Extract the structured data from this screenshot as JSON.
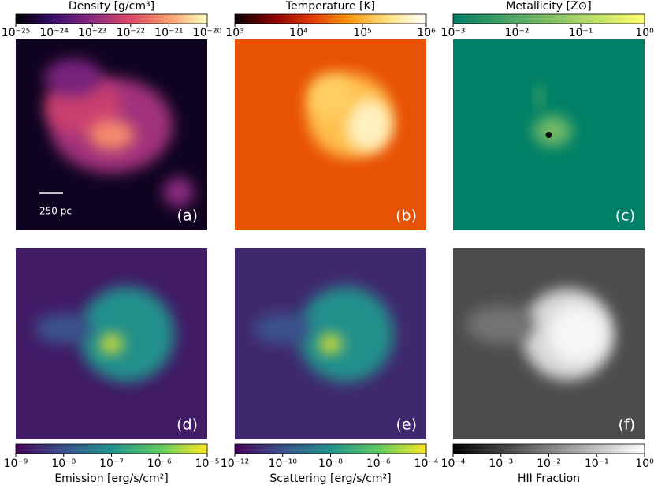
{
  "chart_data": [
    {
      "type": "image",
      "colorbar_label": "Density [g/cm³]",
      "log": true,
      "clim": [
        1e-25,
        1e-20
      ],
      "cticks": [
        {
          "value": 1e-25,
          "label": "10⁻²⁵"
        },
        {
          "value": 1e-24,
          "label": "10⁻²⁴"
        },
        {
          "value": 1e-23,
          "label": "10⁻²³"
        },
        {
          "value": 1e-22,
          "label": "10⁻²²"
        },
        {
          "value": 1e-21,
          "label": "10⁻²¹"
        },
        {
          "value": 1e-20,
          "label": "10⁻²⁰"
        }
      ],
      "colormap": [
        "#000004",
        "#3b0f70",
        "#8c2981",
        "#de4968",
        "#fe9f6d",
        "#fcfdbf"
      ],
      "panel_label": "(a)",
      "annotation": "250 pc",
      "colorbar_position": "top"
    },
    {
      "type": "image",
      "colorbar_label": "Temperature [K]",
      "log": true,
      "clim": [
        1000.0,
        1000000.0
      ],
      "cticks": [
        {
          "value": 1000,
          "label": "10³"
        },
        {
          "value": 10000,
          "label": "10⁴"
        },
        {
          "value": 100000,
          "label": "10⁵"
        },
        {
          "value": 1000000,
          "label": "10⁶"
        }
      ],
      "colormap": [
        "#0b0000",
        "#8b0000",
        "#e03a00",
        "#ff9a10",
        "#ffe080",
        "#ffffff"
      ],
      "panel_label": "(b)",
      "colorbar_position": "top"
    },
    {
      "type": "image",
      "colorbar_label": "Metallicity [Z⊙]",
      "log": true,
      "clim": [
        0.001,
        1
      ],
      "cticks": [
        {
          "value": 0.001,
          "label": "10⁻³"
        },
        {
          "value": 0.01,
          "label": "10⁻²"
        },
        {
          "value": 0.1,
          "label": "10⁻¹"
        },
        {
          "value": 1,
          "label": "10⁰"
        }
      ],
      "colormap": [
        "#008066",
        "#40a066",
        "#80c066",
        "#c0e066",
        "#ffff66"
      ],
      "panel_label": "(c)",
      "colorbar_position": "top"
    },
    {
      "type": "image",
      "colorbar_label": "Emission [erg/s/cm²]",
      "log": true,
      "clim": [
        1e-09,
        1e-05
      ],
      "cticks": [
        {
          "value": 1e-09,
          "label": "10⁻⁹"
        },
        {
          "value": 1e-08,
          "label": "10⁻⁸"
        },
        {
          "value": 1e-07,
          "label": "10⁻⁷"
        },
        {
          "value": 1e-06,
          "label": "10⁻⁶"
        },
        {
          "value": 1e-05,
          "label": "10⁻⁵"
        }
      ],
      "colormap": [
        "#440154",
        "#3b528b",
        "#21918c",
        "#5ec962",
        "#fde725"
      ],
      "panel_label": "(d)",
      "colorbar_position": "bottom"
    },
    {
      "type": "image",
      "colorbar_label": "Scattering [erg/s/cm²]",
      "log": true,
      "clim": [
        1e-12,
        0.0001
      ],
      "cticks": [
        {
          "value": 1e-12,
          "label": "10⁻¹²"
        },
        {
          "value": 1e-10,
          "label": "10⁻¹⁰"
        },
        {
          "value": 1e-08,
          "label": "10⁻⁸"
        },
        {
          "value": 1e-06,
          "label": "10⁻⁶"
        },
        {
          "value": 0.0001,
          "label": "10⁻⁴"
        }
      ],
      "colormap": [
        "#440154",
        "#3b528b",
        "#21918c",
        "#5ec962",
        "#fde725"
      ],
      "panel_label": "(e)",
      "colorbar_position": "bottom"
    },
    {
      "type": "image",
      "colorbar_label": "HII Fraction",
      "log": true,
      "clim": [
        0.0001,
        1
      ],
      "cticks": [
        {
          "value": 0.0001,
          "label": "10⁻⁴"
        },
        {
          "value": 0.001,
          "label": "10⁻³"
        },
        {
          "value": 0.01,
          "label": "10⁻²"
        },
        {
          "value": 0.1,
          "label": "10⁻¹"
        },
        {
          "value": 1,
          "label": "10⁰"
        }
      ],
      "colormap": [
        "#000000",
        "#555555",
        "#aaaaaa",
        "#ffffff"
      ],
      "panel_label": "(f)",
      "colorbar_position": "bottom"
    }
  ]
}
